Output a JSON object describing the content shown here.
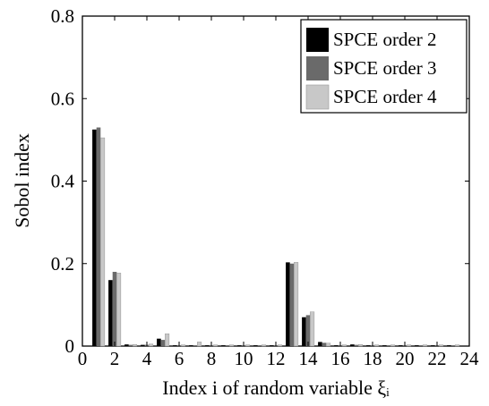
{
  "chart_data": {
    "type": "bar",
    "xlabel": "Index i of random variable ξᵢ",
    "ylabel": "Sobol index",
    "xlim": [
      0,
      24
    ],
    "ylim": [
      0,
      0.8
    ],
    "xticks": [
      "0",
      "2",
      "4",
      "6",
      "8",
      "10",
      "12",
      "14",
      "16",
      "18",
      "20",
      "22",
      "24"
    ],
    "yticks": [
      "0",
      "0.2",
      "0.4",
      "0.6",
      "0.8"
    ],
    "grid": false,
    "legend_position": "top-right",
    "categories": [
      1,
      2,
      3,
      4,
      5,
      6,
      7,
      8,
      9,
      10,
      11,
      12,
      13,
      14,
      15,
      16,
      17,
      18,
      19,
      20,
      21,
      22,
      23
    ],
    "series": [
      {
        "name": "SPCE order 2",
        "color": "#000000",
        "values": [
          0.525,
          0.16,
          0.004,
          0.003,
          0.018,
          0.002,
          0.002,
          0.002,
          0.002,
          0.002,
          0.002,
          0.002,
          0.203,
          0.07,
          0.01,
          0.002,
          0.004,
          0.002,
          0.002,
          0.002,
          0.002,
          0.002,
          0.002
        ]
      },
      {
        "name": "SPCE order 3",
        "color": "#6a6a6a",
        "values": [
          0.53,
          0.18,
          0.003,
          0.003,
          0.015,
          0.002,
          0.002,
          0.002,
          0.002,
          0.002,
          0.002,
          0.002,
          0.2,
          0.075,
          0.008,
          0.002,
          0.003,
          0.002,
          0.002,
          0.002,
          0.002,
          0.002,
          0.002
        ]
      },
      {
        "name": "SPCE order 4",
        "color": "#c8c8c8",
        "values": [
          0.505,
          0.177,
          0.004,
          0.005,
          0.03,
          0.003,
          0.01,
          0.003,
          0.003,
          0.003,
          0.003,
          0.003,
          0.203,
          0.083,
          0.007,
          0.003,
          0.004,
          0.003,
          0.003,
          0.003,
          0.003,
          0.003,
          0.003
        ]
      }
    ]
  }
}
